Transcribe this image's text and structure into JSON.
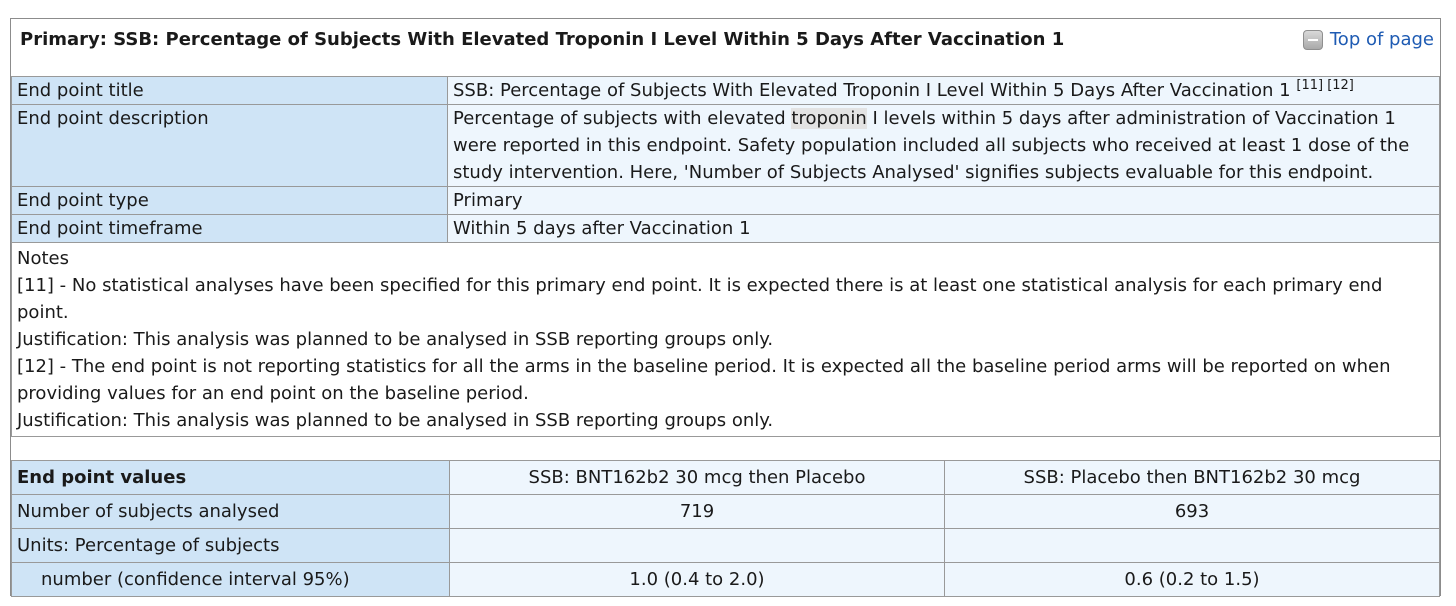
{
  "header": {
    "title": "Primary: SSB: Percentage of Subjects With Elevated Troponin I Level Within 5 Days After Vaccination 1",
    "top_link": "Top of page"
  },
  "info": {
    "title_label": "End point title",
    "title_value": "SSB: Percentage of Subjects With Elevated Troponin I Level Within 5 Days After Vaccination 1",
    "title_refs": "[11] [12]",
    "description_label": "End point description",
    "description_before": "Percentage of subjects with elevated ",
    "description_highlight": "troponin",
    "description_after": " I levels within 5 days after administration of Vaccination 1 were reported in this endpoint. Safety population included all subjects who received at least 1 dose of the study intervention. Here, 'Number of Subjects Analysed' signifies subjects evaluable for this endpoint.",
    "type_label": "End point type",
    "type_value": "Primary",
    "timeframe_label": "End point timeframe",
    "timeframe_value": "Within 5 days after Vaccination 1"
  },
  "notes": {
    "heading": "Notes",
    "lines": [
      "[11] - No statistical analyses have been specified for this primary end point. It is expected there is at least one statistical analysis for each primary end point.",
      "Justification: This analysis was planned to be analysed in SSB reporting groups only.",
      "[12] - The end point is not reporting statistics for all the arms in the baseline period. It is expected all the baseline period arms will be reported on when providing values for an end point on the baseline period.",
      "Justification: This analysis was planned to be analysed in SSB reporting groups only."
    ]
  },
  "values": {
    "header_label": "End point values",
    "groups": [
      "SSB: BNT162b2 30 mcg then Placebo",
      "SSB: Placebo then BNT162b2 30 mcg"
    ],
    "analysed_label": "Number of subjects analysed",
    "analysed": [
      "719",
      "693"
    ],
    "units_label": "Units: Percentage of subjects",
    "measure_label": "number (confidence interval 95%)",
    "measure": [
      "1.0 (0.4 to 2.0)",
      "0.6 (0.2 to 1.5)"
    ]
  }
}
